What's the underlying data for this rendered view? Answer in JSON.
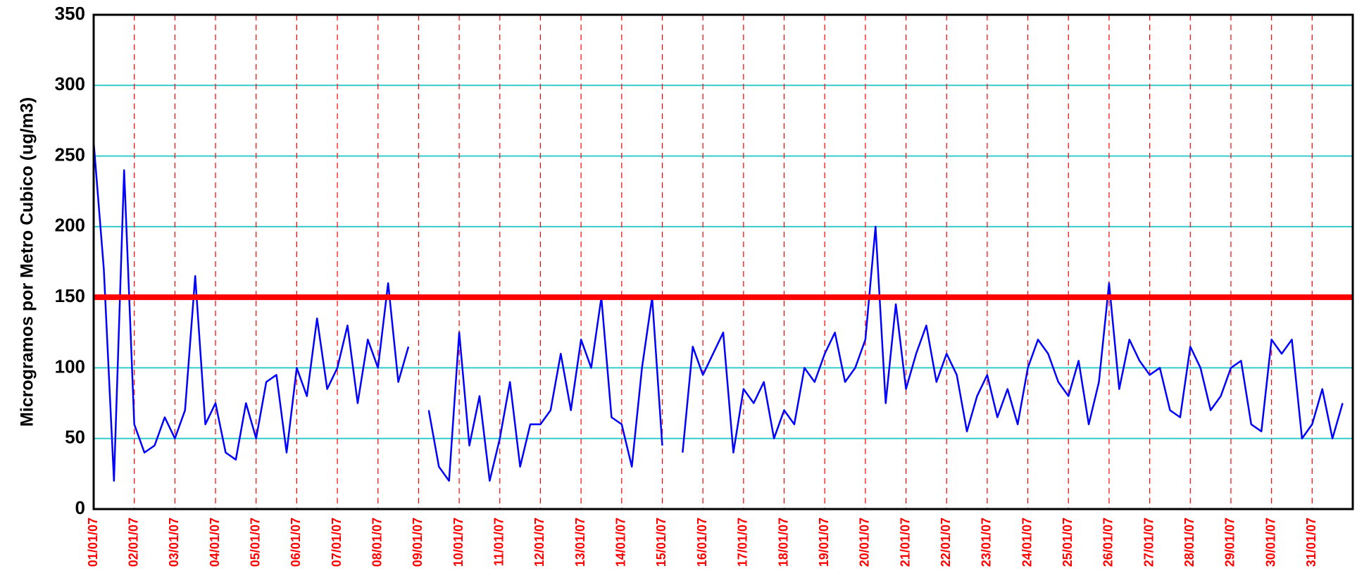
{
  "chart_data": {
    "type": "line",
    "y_label": "Microgramos por Metro Cubico (ug/m3)",
    "xlim": [
      0,
      31
    ],
    "xticks": [
      {
        "value": 0,
        "label": "01/01/07"
      },
      {
        "value": 1,
        "label": "02/01/07"
      },
      {
        "value": 2,
        "label": "03/01/07"
      },
      {
        "value": 3,
        "label": "04/01/07"
      },
      {
        "value": 4,
        "label": "05/01/07"
      },
      {
        "value": 5,
        "label": "06/01/07"
      },
      {
        "value": 6,
        "label": "07/01/07"
      },
      {
        "value": 7,
        "label": "08/01/07"
      },
      {
        "value": 8,
        "label": "09/01/07"
      },
      {
        "value": 9,
        "label": "10/01/07"
      },
      {
        "value": 10,
        "label": "11/01/07"
      },
      {
        "value": 11,
        "label": "12/01/07"
      },
      {
        "value": 12,
        "label": "13/01/07"
      },
      {
        "value": 13,
        "label": "14/01/07"
      },
      {
        "value": 14,
        "label": "15/01/07"
      },
      {
        "value": 15,
        "label": "16/01/07"
      },
      {
        "value": 16,
        "label": "17/01/07"
      },
      {
        "value": 17,
        "label": "18/01/07"
      },
      {
        "value": 18,
        "label": "19/01/07"
      },
      {
        "value": 19,
        "label": "20/01/07"
      },
      {
        "value": 20,
        "label": "21/01/07"
      },
      {
        "value": 21,
        "label": "22/01/07"
      },
      {
        "value": 22,
        "label": "23/01/07"
      },
      {
        "value": 23,
        "label": "24/01/07"
      },
      {
        "value": 24,
        "label": "25/01/07"
      },
      {
        "value": 25,
        "label": "26/01/07"
      },
      {
        "value": 26,
        "label": "27/01/07"
      },
      {
        "value": 27,
        "label": "28/01/07"
      },
      {
        "value": 28,
        "label": "29/01/07"
      },
      {
        "value": 29,
        "label": "30/01/07"
      },
      {
        "value": 30,
        "label": "31/01/07"
      }
    ],
    "ylim": [
      0,
      350
    ],
    "yticks": [
      0,
      50,
      100,
      150,
      200,
      250,
      300,
      350
    ],
    "grid": true,
    "grid_color": "#33cccc",
    "vgrid_color": "#ff0000",
    "reference_line": {
      "value": 150,
      "color": "#ff0000"
    },
    "x": [
      0,
      0.25,
      0.5,
      0.75,
      1,
      1.25,
      1.5,
      1.75,
      2,
      2.25,
      2.5,
      2.75,
      3,
      3.25,
      3.5,
      3.75,
      4,
      4.25,
      4.5,
      4.75,
      5,
      5.25,
      5.5,
      5.75,
      6,
      6.25,
      6.5,
      6.75,
      7,
      7.25,
      7.5,
      7.75,
      8,
      8.25,
      8.5,
      8.75,
      9,
      9.25,
      9.5,
      9.75,
      10,
      10.25,
      10.5,
      10.75,
      11,
      11.25,
      11.5,
      11.75,
      12,
      12.25,
      12.5,
      12.75,
      13,
      13.25,
      13.5,
      13.75,
      14,
      14.25,
      14.5,
      14.75,
      15,
      15.25,
      15.5,
      15.75,
      16,
      16.25,
      16.5,
      16.75,
      17,
      17.25,
      17.5,
      17.75,
      18,
      18.25,
      18.5,
      18.75,
      19,
      19.25,
      19.5,
      19.75,
      20,
      20.25,
      20.5,
      20.75,
      21,
      21.25,
      21.5,
      21.75,
      22,
      22.25,
      22.5,
      22.75,
      23,
      23.25,
      23.5,
      23.75,
      24,
      24.25,
      24.5,
      24.75,
      25,
      25.25,
      25.5,
      25.75,
      26,
      26.25,
      26.5,
      26.75,
      27,
      27.25,
      27.5,
      27.75,
      28,
      28.25,
      28.5,
      28.75,
      29,
      29.25,
      29.5,
      29.75,
      30,
      30.25,
      30.5,
      30.75
    ],
    "series": [
      {
        "color": "#0000ff",
        "values": [
          260,
          170,
          20,
          240,
          60,
          40,
          45,
          65,
          50,
          70,
          165,
          60,
          75,
          40,
          35,
          75,
          50,
          90,
          95,
          40,
          100,
          80,
          135,
          85,
          100,
          130,
          75,
          120,
          100,
          160,
          90,
          115,
          null,
          70,
          30,
          20,
          125,
          45,
          80,
          20,
          50,
          90,
          30,
          60,
          60,
          70,
          110,
          70,
          120,
          100,
          150,
          65,
          60,
          30,
          100,
          150,
          45,
          null,
          40,
          115,
          95,
          110,
          125,
          40,
          85,
          75,
          90,
          50,
          70,
          60,
          100,
          90,
          110,
          125,
          90,
          100,
          120,
          200,
          75,
          145,
          85,
          110,
          130,
          90,
          110,
          95,
          55,
          80,
          95,
          65,
          85,
          60,
          100,
          120,
          110,
          90,
          80,
          105,
          60,
          90,
          160,
          85,
          120,
          105,
          95,
          100,
          70,
          65,
          115,
          100,
          70,
          80,
          100,
          105,
          60,
          55,
          120,
          110,
          120,
          50,
          60,
          85,
          50,
          75
        ]
      }
    ]
  }
}
